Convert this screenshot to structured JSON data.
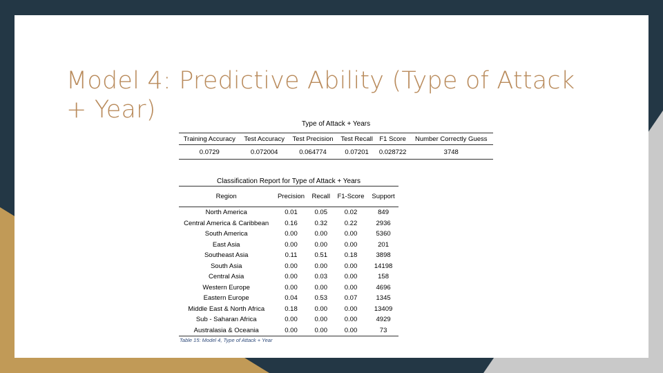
{
  "title": "Model 4: Predictive Ability (Type of Attack + Year)",
  "colors": {
    "background": "#233745",
    "accent_gold": "#c19a57",
    "gray": "#c9c9c9",
    "title": "#b98b5c"
  },
  "summary_table": {
    "caption": "Type of Attack + Years",
    "headers": [
      "Training Accuracy",
      "Test Accuracy",
      "Test Precision",
      "Test Recall",
      "F1 Score",
      "Number Correctly Guess"
    ],
    "row": [
      "0.0729",
      "0.072004",
      "0.064774",
      "0.07201",
      "0.028722",
      "3748"
    ]
  },
  "report_table": {
    "caption": "Classification Report for Type of Attack + Years",
    "headers": [
      "Region",
      "Precision",
      "Recall",
      "F1-Score",
      "Support"
    ],
    "rows": [
      [
        "North America",
        "0.01",
        "0.05",
        "0.02",
        "849"
      ],
      [
        "Central America & Caribbean",
        "0.16",
        "0.32",
        "0.22",
        "2936"
      ],
      [
        "South America",
        "0.00",
        "0.00",
        "0.00",
        "5360"
      ],
      [
        "East Asia",
        "0.00",
        "0.00",
        "0.00",
        "201"
      ],
      [
        "Southeast Asia",
        "0.11",
        "0.51",
        "0.18",
        "3898"
      ],
      [
        "South Asia",
        "0.00",
        "0.00",
        "0.00",
        "14198"
      ],
      [
        "Central Asia",
        "0.00",
        "0.03",
        "0.00",
        "158"
      ],
      [
        "Western Europe",
        "0.00",
        "0.00",
        "0.00",
        "4696"
      ],
      [
        "Eastern Europe",
        "0.04",
        "0.53",
        "0.07",
        "1345"
      ],
      [
        "Middle East & North Africa",
        "0.18",
        "0.00",
        "0.00",
        "13409"
      ],
      [
        "Sub - Saharan Africa",
        "0.00",
        "0.00",
        "0.00",
        "4929"
      ],
      [
        "Australasia & Oceania",
        "0.00",
        "0.00",
        "0.00",
        "73"
      ]
    ]
  },
  "table_note": "Table 15: Model 4, Type of Attack + Year"
}
